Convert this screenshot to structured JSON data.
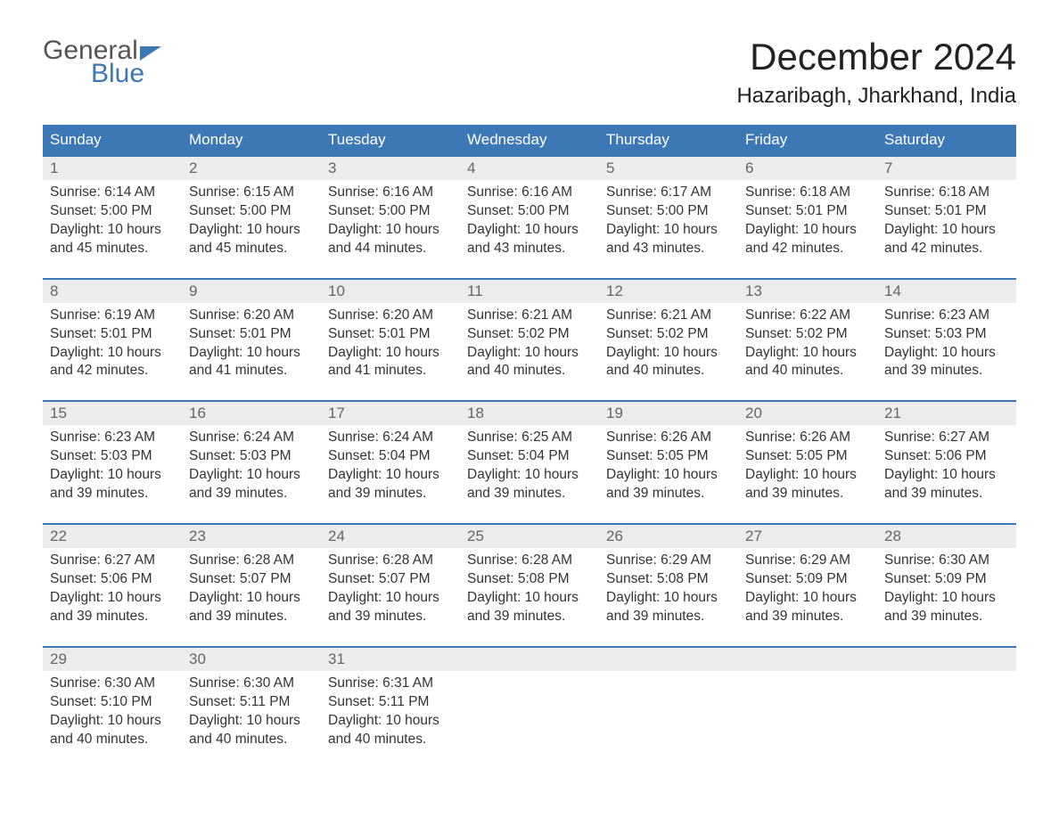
{
  "logo": {
    "line1": "General",
    "line2": "Blue"
  },
  "title": "December 2024",
  "location": "Hazaribagh, Jharkhand, India",
  "colors": {
    "header_bg": "#3d78b6",
    "header_text": "#ffffff",
    "daynum_bg": "#ececec",
    "daynum_text": "#666666",
    "body_text": "#333333",
    "logo_blue": "#3d78b6"
  },
  "typography": {
    "title_fontsize": 42,
    "location_fontsize": 24,
    "dow_fontsize": 17,
    "daynum_fontsize": 17,
    "detail_fontsize": 15.5
  },
  "day_names": [
    "Sunday",
    "Monday",
    "Tuesday",
    "Wednesday",
    "Thursday",
    "Friday",
    "Saturday"
  ],
  "labels": {
    "sunrise": "Sunrise:",
    "sunset": "Sunset:",
    "daylight": "Daylight:"
  },
  "weeks": [
    [
      {
        "num": "1",
        "sunrise": "6:14 AM",
        "sunset": "5:00 PM",
        "daylight1": "10 hours",
        "daylight2": "and 45 minutes."
      },
      {
        "num": "2",
        "sunrise": "6:15 AM",
        "sunset": "5:00 PM",
        "daylight1": "10 hours",
        "daylight2": "and 45 minutes."
      },
      {
        "num": "3",
        "sunrise": "6:16 AM",
        "sunset": "5:00 PM",
        "daylight1": "10 hours",
        "daylight2": "and 44 minutes."
      },
      {
        "num": "4",
        "sunrise": "6:16 AM",
        "sunset": "5:00 PM",
        "daylight1": "10 hours",
        "daylight2": "and 43 minutes."
      },
      {
        "num": "5",
        "sunrise": "6:17 AM",
        "sunset": "5:00 PM",
        "daylight1": "10 hours",
        "daylight2": "and 43 minutes."
      },
      {
        "num": "6",
        "sunrise": "6:18 AM",
        "sunset": "5:01 PM",
        "daylight1": "10 hours",
        "daylight2": "and 42 minutes."
      },
      {
        "num": "7",
        "sunrise": "6:18 AM",
        "sunset": "5:01 PM",
        "daylight1": "10 hours",
        "daylight2": "and 42 minutes."
      }
    ],
    [
      {
        "num": "8",
        "sunrise": "6:19 AM",
        "sunset": "5:01 PM",
        "daylight1": "10 hours",
        "daylight2": "and 42 minutes."
      },
      {
        "num": "9",
        "sunrise": "6:20 AM",
        "sunset": "5:01 PM",
        "daylight1": "10 hours",
        "daylight2": "and 41 minutes."
      },
      {
        "num": "10",
        "sunrise": "6:20 AM",
        "sunset": "5:01 PM",
        "daylight1": "10 hours",
        "daylight2": "and 41 minutes."
      },
      {
        "num": "11",
        "sunrise": "6:21 AM",
        "sunset": "5:02 PM",
        "daylight1": "10 hours",
        "daylight2": "and 40 minutes."
      },
      {
        "num": "12",
        "sunrise": "6:21 AM",
        "sunset": "5:02 PM",
        "daylight1": "10 hours",
        "daylight2": "and 40 minutes."
      },
      {
        "num": "13",
        "sunrise": "6:22 AM",
        "sunset": "5:02 PM",
        "daylight1": "10 hours",
        "daylight2": "and 40 minutes."
      },
      {
        "num": "14",
        "sunrise": "6:23 AM",
        "sunset": "5:03 PM",
        "daylight1": "10 hours",
        "daylight2": "and 39 minutes."
      }
    ],
    [
      {
        "num": "15",
        "sunrise": "6:23 AM",
        "sunset": "5:03 PM",
        "daylight1": "10 hours",
        "daylight2": "and 39 minutes."
      },
      {
        "num": "16",
        "sunrise": "6:24 AM",
        "sunset": "5:03 PM",
        "daylight1": "10 hours",
        "daylight2": "and 39 minutes."
      },
      {
        "num": "17",
        "sunrise": "6:24 AM",
        "sunset": "5:04 PM",
        "daylight1": "10 hours",
        "daylight2": "and 39 minutes."
      },
      {
        "num": "18",
        "sunrise": "6:25 AM",
        "sunset": "5:04 PM",
        "daylight1": "10 hours",
        "daylight2": "and 39 minutes."
      },
      {
        "num": "19",
        "sunrise": "6:26 AM",
        "sunset": "5:05 PM",
        "daylight1": "10 hours",
        "daylight2": "and 39 minutes."
      },
      {
        "num": "20",
        "sunrise": "6:26 AM",
        "sunset": "5:05 PM",
        "daylight1": "10 hours",
        "daylight2": "and 39 minutes."
      },
      {
        "num": "21",
        "sunrise": "6:27 AM",
        "sunset": "5:06 PM",
        "daylight1": "10 hours",
        "daylight2": "and 39 minutes."
      }
    ],
    [
      {
        "num": "22",
        "sunrise": "6:27 AM",
        "sunset": "5:06 PM",
        "daylight1": "10 hours",
        "daylight2": "and 39 minutes."
      },
      {
        "num": "23",
        "sunrise": "6:28 AM",
        "sunset": "5:07 PM",
        "daylight1": "10 hours",
        "daylight2": "and 39 minutes."
      },
      {
        "num": "24",
        "sunrise": "6:28 AM",
        "sunset": "5:07 PM",
        "daylight1": "10 hours",
        "daylight2": "and 39 minutes."
      },
      {
        "num": "25",
        "sunrise": "6:28 AM",
        "sunset": "5:08 PM",
        "daylight1": "10 hours",
        "daylight2": "and 39 minutes."
      },
      {
        "num": "26",
        "sunrise": "6:29 AM",
        "sunset": "5:08 PM",
        "daylight1": "10 hours",
        "daylight2": "and 39 minutes."
      },
      {
        "num": "27",
        "sunrise": "6:29 AM",
        "sunset": "5:09 PM",
        "daylight1": "10 hours",
        "daylight2": "and 39 minutes."
      },
      {
        "num": "28",
        "sunrise": "6:30 AM",
        "sunset": "5:09 PM",
        "daylight1": "10 hours",
        "daylight2": "and 39 minutes."
      }
    ],
    [
      {
        "num": "29",
        "sunrise": "6:30 AM",
        "sunset": "5:10 PM",
        "daylight1": "10 hours",
        "daylight2": "and 40 minutes."
      },
      {
        "num": "30",
        "sunrise": "6:30 AM",
        "sunset": "5:11 PM",
        "daylight1": "10 hours",
        "daylight2": "and 40 minutes."
      },
      {
        "num": "31",
        "sunrise": "6:31 AM",
        "sunset": "5:11 PM",
        "daylight1": "10 hours",
        "daylight2": "and 40 minutes."
      },
      null,
      null,
      null,
      null
    ]
  ]
}
